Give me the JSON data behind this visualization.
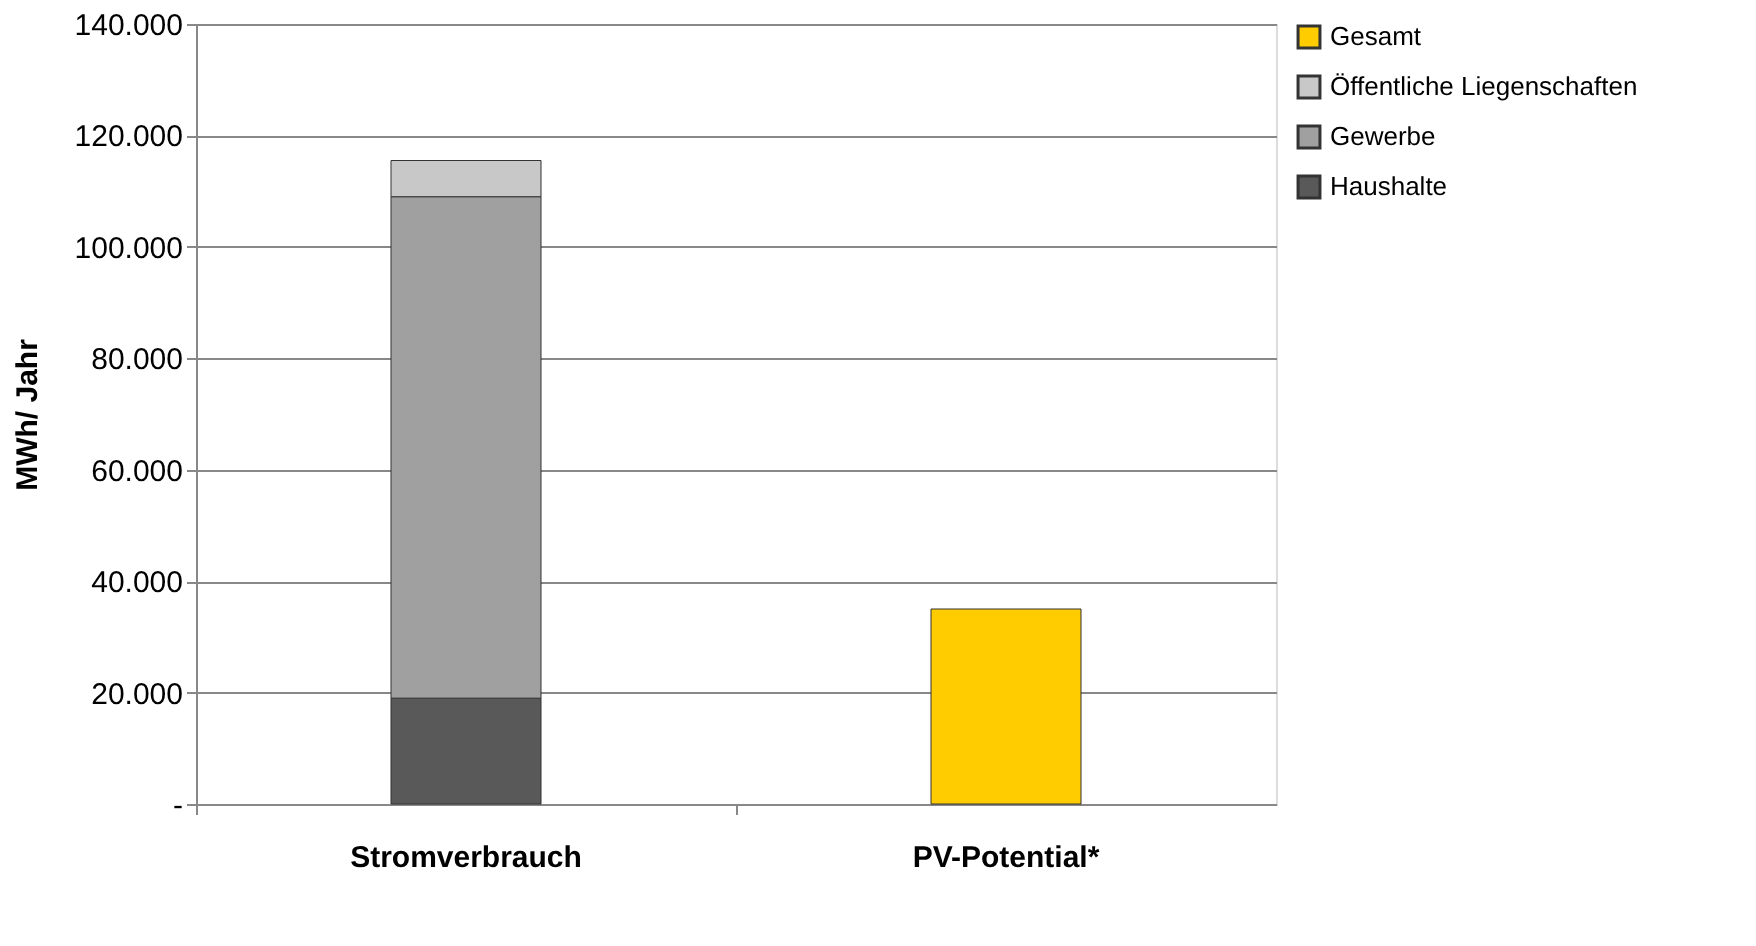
{
  "chart_data": {
    "type": "bar",
    "stacked": true,
    "ylabel": "MWh/ Jahr",
    "categories": [
      "Stromverbrauch",
      "PV-Potential*"
    ],
    "series": [
      {
        "name": "Haushalte",
        "color": "#595959",
        "values": [
          19000,
          null
        ]
      },
      {
        "name": "Gewerbe",
        "color": "#a0a0a0",
        "values": [
          90000,
          null
        ]
      },
      {
        "name": "Öffentliche Liegenschaften",
        "color": "#c8c8c8",
        "values": [
          6500,
          null
        ]
      },
      {
        "name": "Gesamt",
        "color": "#ffcc00",
        "values": [
          null,
          35000
        ]
      }
    ],
    "ylim": [
      0,
      140000
    ],
    "yticks": [
      {
        "value": 0,
        "label": "-"
      },
      {
        "value": 20000,
        "label": "20.000"
      },
      {
        "value": 40000,
        "label": "40.000"
      },
      {
        "value": 60000,
        "label": "60.000"
      },
      {
        "value": 80000,
        "label": "80.000"
      },
      {
        "value": 100000,
        "label": "100.000"
      },
      {
        "value": 120000,
        "label": "120.000"
      },
      {
        "value": 140000,
        "label": "140.000"
      }
    ],
    "grid": "y",
    "legend": "right"
  }
}
